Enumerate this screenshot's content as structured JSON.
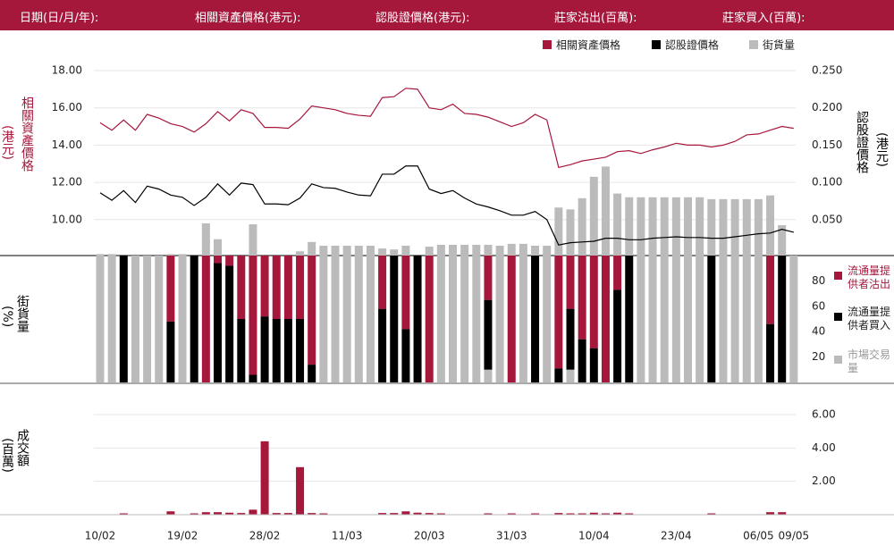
{
  "header": {
    "labels": [
      "日期(日/月/年):",
      "相關資產價格(港元):",
      "認股證價格(港元):",
      "莊家沽出(百萬):",
      "莊家買入(百萬):"
    ]
  },
  "chart_data": [
    {
      "type": "line",
      "y_label": "相關資產價格",
      "y_unit": "(港元)",
      "y2_label": "認股證價格",
      "y2_unit": "(港元)",
      "ylim": [
        8,
        18
      ],
      "yticks": [
        {
          "value": 18,
          "label": "18.00"
        },
        {
          "value": 16,
          "label": "16.00"
        },
        {
          "value": 14,
          "label": "14.00"
        },
        {
          "value": 12,
          "label": "12.00"
        },
        {
          "value": 10,
          "label": "10.00"
        }
      ],
      "y2lim": [
        0,
        0.25
      ],
      "y2ticks": [
        {
          "value": 0.25,
          "label": "0.250"
        },
        {
          "value": 0.2,
          "label": "0.200"
        },
        {
          "value": 0.15,
          "label": "0.150"
        },
        {
          "value": 0.1,
          "label": "0.100"
        },
        {
          "value": 0.05,
          "label": "0.050"
        }
      ],
      "grid": true,
      "series": [
        {
          "name": "相關資產價格",
          "color": "#a6173c",
          "kind": "line",
          "values": [
            15.2,
            14.8,
            15.35,
            14.8,
            15.65,
            15.45,
            15.15,
            15.0,
            14.7,
            15.15,
            15.8,
            15.3,
            15.9,
            15.7,
            14.95,
            14.95,
            14.9,
            15.4,
            16.1,
            16.0,
            15.9,
            15.7,
            15.6,
            15.55,
            16.55,
            16.6,
            17.05,
            17.0,
            16.0,
            15.9,
            16.2,
            15.7,
            15.65,
            15.5,
            15.25,
            15.0,
            15.2,
            15.65,
            15.35,
            12.8,
            12.95,
            13.15,
            13.25,
            13.35,
            13.65,
            13.7,
            13.55,
            13.75,
            13.9,
            14.1,
            14.0,
            14.0,
            13.9,
            14.0,
            14.2,
            14.55,
            14.6,
            14.8,
            15.0,
            14.9
          ]
        },
        {
          "name": "認股證價格",
          "color": "#000000",
          "kind": "line",
          "axis": "y2",
          "values": [
            0.086,
            0.076,
            0.089,
            0.073,
            0.095,
            0.091,
            0.083,
            0.08,
            0.069,
            0.08,
            0.098,
            0.083,
            0.099,
            0.097,
            0.071,
            0.071,
            0.07,
            0.079,
            0.098,
            0.093,
            0.092,
            0.087,
            0.083,
            0.082,
            0.111,
            0.111,
            0.122,
            0.122,
            0.091,
            0.085,
            0.089,
            0.079,
            0.071,
            0.067,
            0.062,
            0.056,
            0.056,
            0.061,
            0.05,
            0.016,
            0.019,
            0.02,
            0.021,
            0.025,
            0.025,
            0.023,
            0.023,
            0.025,
            0.026,
            0.027,
            0.026,
            0.026,
            0.025,
            0.025,
            0.027,
            0.029,
            0.031,
            0.032,
            0.037,
            0.033
          ]
        },
        {
          "name": "街貨量",
          "color": "#bbbbbb",
          "kind": "bar",
          "values": [
            8.15,
            8.15,
            8,
            8,
            8,
            8,
            8.15,
            8.15,
            8,
            9.8,
            8.95,
            8,
            8,
            9.75,
            8,
            8,
            8,
            8.3,
            8.8,
            8.6,
            8.6,
            8.6,
            8.6,
            8.6,
            8.45,
            8.4,
            8.6,
            8,
            8.55,
            8.65,
            8.65,
            8.65,
            8.65,
            8.65,
            8.6,
            8.7,
            8.7,
            8.6,
            8.6,
            10.65,
            10.55,
            11.15,
            12.3,
            12.85,
            11.4,
            11.2,
            11.2,
            11.2,
            11.2,
            11.2,
            11.2,
            11.2,
            11.1,
            11.1,
            11.1,
            11.1,
            11.1,
            11.3,
            9.7,
            8
          ]
        }
      ]
    },
    {
      "type": "stacked_bar",
      "y_label": "街貨量",
      "y_unit": "(%)",
      "ylim": [
        0,
        100
      ],
      "yticks": [
        20,
        40,
        60,
        80
      ],
      "series": [
        {
          "name": "流通量提供者沽出",
          "color": "#a6173c",
          "values": [
            0,
            0,
            0,
            0,
            0,
            0,
            52,
            0,
            0,
            100,
            6,
            8,
            50,
            94,
            48,
            50,
            50,
            50,
            86,
            0,
            0,
            0,
            0,
            0,
            42,
            0,
            58,
            0,
            100,
            0,
            0,
            0,
            0,
            35,
            0,
            100,
            0,
            0,
            0,
            89,
            42,
            66,
            73,
            100,
            27,
            0,
            0,
            0,
            0,
            0,
            0,
            0,
            0,
            0,
            0,
            0,
            0,
            54,
            0,
            0
          ]
        },
        {
          "name": "流通量提供者買入",
          "color": "#000000",
          "values": [
            0,
            0,
            100,
            0,
            0,
            0,
            48,
            0,
            100,
            0,
            94,
            92,
            50,
            6,
            52,
            50,
            50,
            50,
            14,
            0,
            0,
            0,
            0,
            0,
            58,
            100,
            42,
            100,
            0,
            0,
            0,
            0,
            0,
            55,
            0,
            0,
            0,
            100,
            0,
            11,
            48,
            34,
            27,
            0,
            73,
            100,
            0,
            0,
            0,
            0,
            0,
            0,
            100,
            0,
            0,
            0,
            0,
            46,
            100,
            0
          ]
        },
        {
          "name": "市場交易量",
          "color": "#bbbbbb",
          "values": [
            100,
            100,
            0,
            100,
            100,
            100,
            0,
            100,
            0,
            0,
            0,
            0,
            0,
            0,
            0,
            0,
            0,
            0,
            0,
            100,
            100,
            100,
            100,
            100,
            0,
            0,
            0,
            0,
            0,
            100,
            100,
            100,
            100,
            10,
            100,
            0,
            100,
            0,
            100,
            0,
            10,
            0,
            0,
            0,
            0,
            0,
            100,
            100,
            100,
            100,
            100,
            100,
            0,
            100,
            100,
            100,
            100,
            0,
            0,
            100
          ]
        }
      ]
    },
    {
      "type": "bar",
      "y_label": "成交額",
      "y_unit": "(百萬)",
      "ylim": [
        0,
        6
      ],
      "yticks": [
        {
          "value": 2,
          "label": "2.00"
        },
        {
          "value": 4,
          "label": "4.00"
        },
        {
          "value": 6,
          "label": "6.00"
        }
      ],
      "grid": true,
      "color": "#a6173c",
      "categories": [
        "10/02",
        null,
        null,
        null,
        null,
        null,
        null,
        "19/02",
        null,
        null,
        null,
        null,
        null,
        null,
        "28/02",
        null,
        null,
        null,
        null,
        null,
        null,
        "11/03",
        null,
        null,
        null,
        null,
        null,
        null,
        "20/03",
        null,
        null,
        null,
        null,
        null,
        null,
        "31/03",
        null,
        null,
        null,
        null,
        null,
        null,
        "10/04",
        null,
        null,
        null,
        null,
        null,
        null,
        "23/04",
        null,
        null,
        null,
        null,
        null,
        null,
        "06/05",
        null,
        null,
        "09/05"
      ],
      "values": [
        0,
        0,
        0.08,
        0,
        0,
        0,
        0.2,
        0,
        0.08,
        0.15,
        0.15,
        0.12,
        0.1,
        0.3,
        4.4,
        0.1,
        0.1,
        2.85,
        0.1,
        0.08,
        0,
        0,
        0,
        0,
        0.1,
        0.1,
        0.2,
        0.12,
        0.1,
        0.08,
        0,
        0,
        0,
        0.08,
        0,
        0.08,
        0,
        0.08,
        0,
        0.1,
        0.08,
        0.08,
        0.12,
        0.08,
        0.12,
        0.08,
        0,
        0,
        0,
        0,
        0,
        0,
        0.08,
        0,
        0,
        0,
        0,
        0.15,
        0.15,
        0
      ]
    }
  ]
}
